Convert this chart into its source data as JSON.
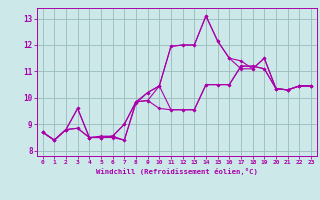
{
  "xlabel": "Windchill (Refroidissement éolien,°C)",
  "xlim": [
    -0.5,
    23.5
  ],
  "ylim": [
    7.8,
    13.4
  ],
  "yticks": [
    8,
    9,
    10,
    11,
    12,
    13
  ],
  "xticks": [
    0,
    1,
    2,
    3,
    4,
    5,
    6,
    7,
    8,
    9,
    10,
    11,
    12,
    13,
    14,
    15,
    16,
    17,
    18,
    19,
    20,
    21,
    22,
    23
  ],
  "background_color": "#cce8e8",
  "grid_color": "#99bbbb",
  "line_color": "#aa00aa",
  "lines": [
    [
      8.7,
      8.4,
      8.8,
      9.6,
      8.5,
      8.5,
      8.5,
      8.4,
      9.85,
      9.9,
      10.45,
      11.95,
      12.0,
      12.0,
      13.1,
      12.15,
      11.5,
      11.1,
      11.1,
      11.5,
      10.35,
      10.3,
      10.45,
      10.45
    ],
    [
      8.7,
      8.4,
      8.8,
      8.85,
      8.5,
      8.5,
      8.55,
      9.0,
      9.85,
      9.9,
      9.6,
      9.55,
      9.55,
      9.55,
      10.5,
      10.5,
      10.5,
      11.2,
      11.2,
      11.1,
      10.35,
      10.3,
      10.45,
      10.45
    ],
    [
      8.7,
      8.4,
      8.8,
      9.6,
      8.5,
      8.55,
      8.55,
      9.0,
      9.85,
      10.2,
      10.45,
      11.95,
      12.0,
      12.0,
      13.1,
      12.15,
      11.5,
      11.4,
      11.1,
      11.5,
      10.35,
      10.3,
      10.45,
      10.45
    ],
    [
      8.7,
      8.4,
      8.8,
      8.85,
      8.5,
      8.5,
      8.55,
      8.4,
      9.8,
      10.2,
      10.45,
      9.55,
      9.55,
      9.55,
      10.5,
      10.5,
      10.5,
      11.2,
      11.2,
      11.1,
      10.35,
      10.3,
      10.45,
      10.45
    ]
  ]
}
